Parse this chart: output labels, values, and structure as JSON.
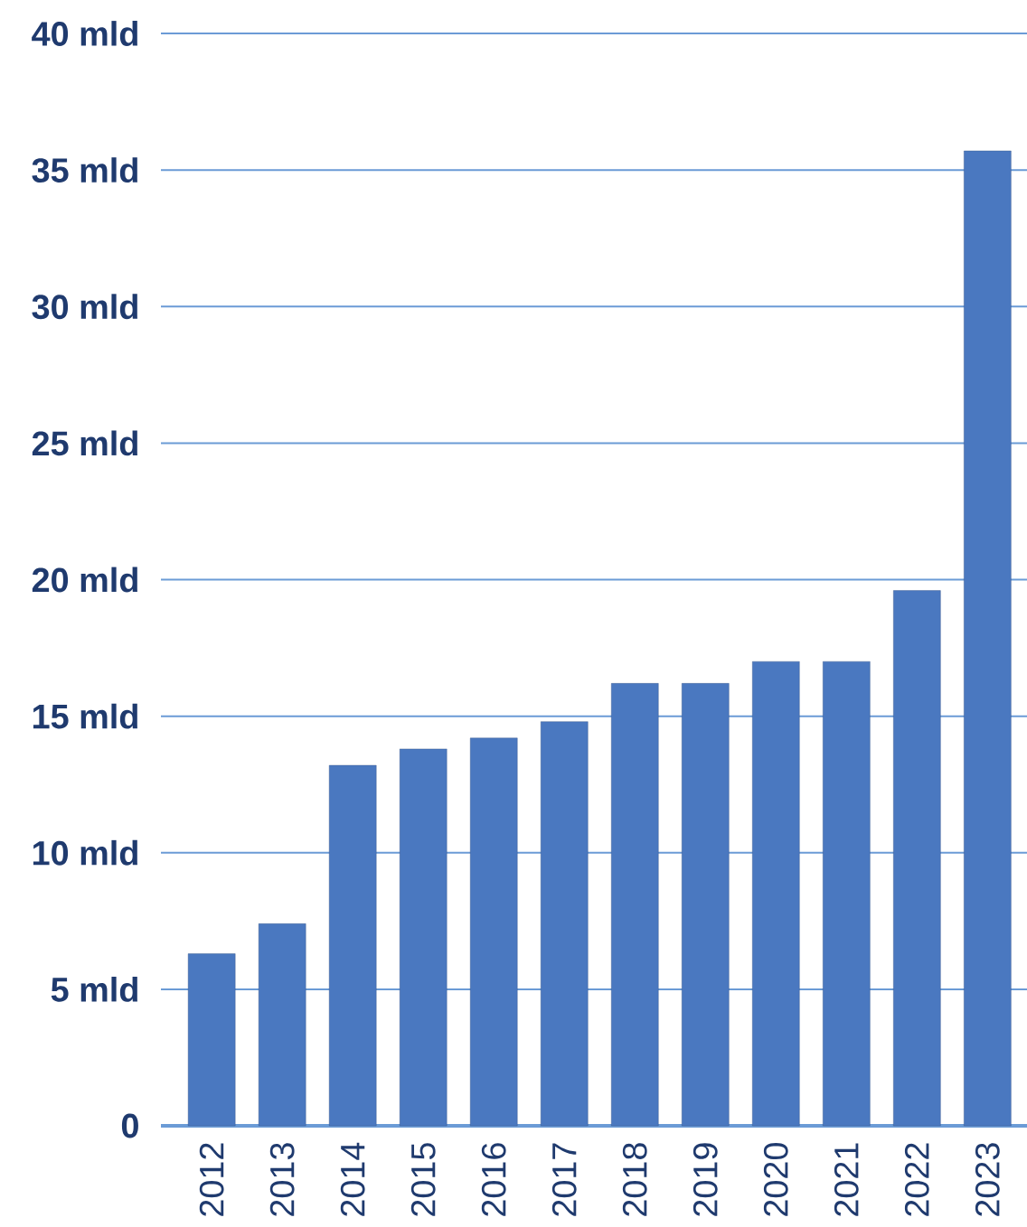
{
  "chart_data": {
    "type": "bar",
    "categories": [
      "2012",
      "2013",
      "2014",
      "2015",
      "2016",
      "2017",
      "2018",
      "2019",
      "2020",
      "2021",
      "2022",
      "2023"
    ],
    "values": [
      6.3,
      7.4,
      13.2,
      13.8,
      14.2,
      14.8,
      16.2,
      16.2,
      17.0,
      17.0,
      19.6,
      35.7
    ],
    "color": "#4a78c0",
    "ylim": [
      0,
      40
    ],
    "yticks": [
      0,
      {
        "value": 5,
        "label": "5 mld"
      },
      {
        "value": 10,
        "label": "10 mld"
      },
      {
        "value": 15,
        "label": "15 mld"
      },
      {
        "value": 20,
        "label": "20 mld"
      },
      {
        "value": 25,
        "label": "25 mld"
      },
      {
        "value": 30,
        "label": "30 mld"
      },
      {
        "value": 35,
        "label": "35 mld"
      },
      {
        "value": 40,
        "label": "40 mld"
      }
    ],
    "grid": "y"
  }
}
